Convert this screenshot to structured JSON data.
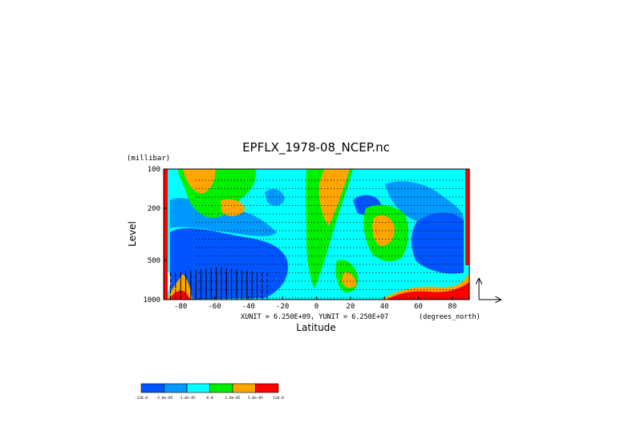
{
  "chart_data": {
    "type": "heatmap",
    "title": "EPFLX_1978-08_NCEP.nc",
    "xlabel": "Latitude",
    "xunit": "(degrees_north)",
    "ylabel": "Level",
    "yunit": "(millibar)",
    "x_ticks": [
      "-80",
      "-60",
      "-40",
      "-20",
      "0",
      "20",
      "40",
      "60",
      "80"
    ],
    "x_tick_values": [
      -80,
      -60,
      -40,
      -20,
      0,
      20,
      40,
      60,
      80
    ],
    "xlim": [
      -90,
      90
    ],
    "y_ticks": [
      "100",
      "200",
      "500",
      "1000"
    ],
    "y_tick_values": [
      100,
      200,
      500,
      1000
    ],
    "ylim": [
      1000,
      100
    ],
    "y_scale": "log",
    "vector_units": "XUNIT = 6.250E+09, YUNIT = 6.250E+07",
    "colorbar": {
      "colors": [
        "#0055ff",
        "#0099ff",
        "#00ffff",
        "#00ee00",
        "#ffa500",
        "#ff0000"
      ],
      "labels": [
        "-120.0",
        "-5.0e-05",
        "-1.0e-05",
        "0.0",
        "1.0e-05",
        "5.0e-05",
        "120.0"
      ]
    }
  }
}
